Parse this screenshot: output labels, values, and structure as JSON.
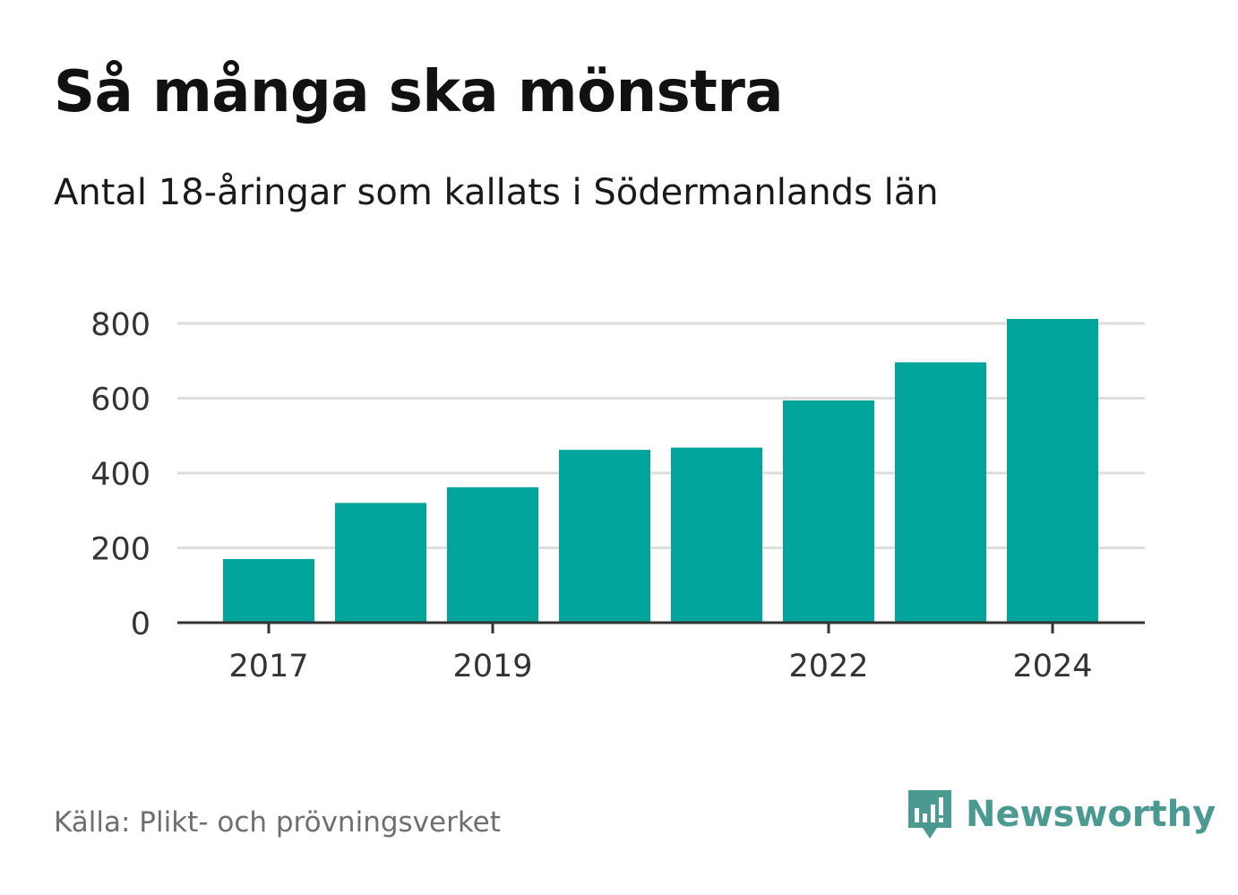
{
  "title": "Så många ska mönstra",
  "subtitle": "Antal 18-åringar som kallats i Södermanlands län",
  "source": "Källa: Plikt- och prövningsverket",
  "brand": {
    "name": "Newsworthy",
    "color": "#4a9a92",
    "icon": "newsworthy-logo-icon"
  },
  "colors": {
    "bar": "#00a49a",
    "grid": "#dddddd",
    "axis": "#333333",
    "tick_text": "#333333"
  },
  "chart_data": {
    "type": "bar",
    "title": "Så många ska mönstra",
    "subtitle": "Antal 18-åringar som kallats i Södermanlands län",
    "xlabel": "",
    "ylabel": "",
    "categories": [
      "2017",
      "2018",
      "2019",
      "2020",
      "2021",
      "2022",
      "2023",
      "2024"
    ],
    "values": [
      170,
      320,
      362,
      462,
      468,
      594,
      696,
      812
    ],
    "x_tick_labels": [
      "2017",
      "2019",
      "2022",
      "2024"
    ],
    "y_ticks": [
      0,
      200,
      400,
      600,
      800
    ],
    "y_tick_labels": [
      "0",
      "200",
      "400",
      "600",
      "800"
    ],
    "ylim": [
      0,
      800
    ],
    "grid": true,
    "legend": "none"
  }
}
